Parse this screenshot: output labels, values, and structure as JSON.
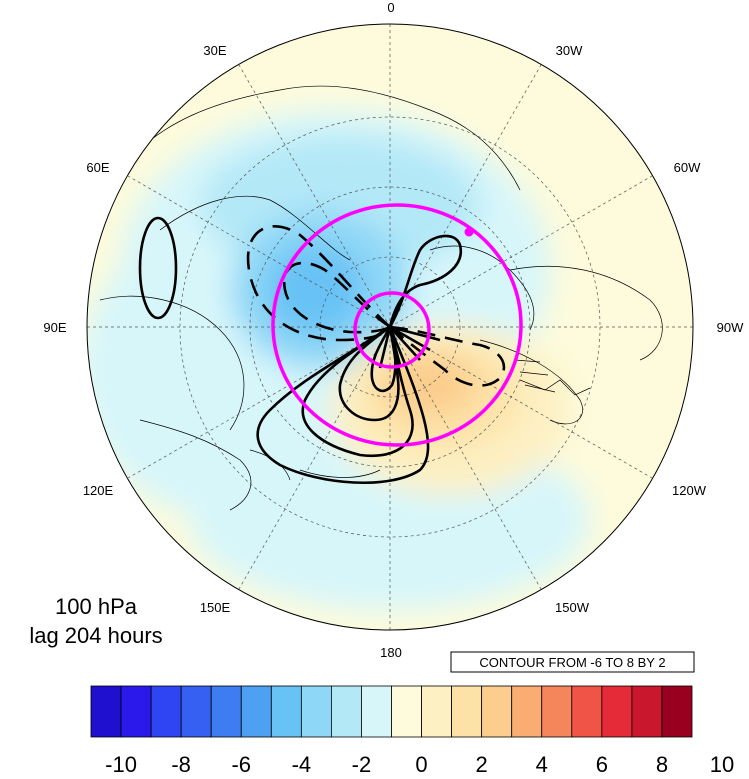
{
  "title": {
    "line1": "100 hPa",
    "line2": "lag 204 hours"
  },
  "contour_info": "CONTOUR FROM -6 TO 8 BY 2",
  "longitude_labels": [
    "0",
    "30W",
    "60W",
    "90W",
    "120W",
    "150W",
    "180",
    "150E",
    "120E",
    "90E",
    "60E",
    "30E"
  ],
  "colorbar": {
    "ticks": [
      "-10",
      "-8",
      "-6",
      "-4",
      "-2",
      "0",
      "2",
      "4",
      "6",
      "8",
      "10"
    ],
    "colors": [
      "#1f0fcf",
      "#2a19ea",
      "#2f45f4",
      "#3560f2",
      "#3d7df1",
      "#4ea0f2",
      "#67c2f5",
      "#8fd7f7",
      "#b3e8f7",
      "#d7f6fa",
      "#fdfbdc",
      "#fdf0c3",
      "#fde2a8",
      "#fccd8d",
      "#f9ad72",
      "#f5855a",
      "#ef5447",
      "#e52b38",
      "#c9182e",
      "#990020"
    ]
  },
  "contour_range": {
    "min": -6,
    "max": 8,
    "interval": 2
  },
  "colors": {
    "highlight_circle": "#ff00ff",
    "contour_line": "#000000"
  }
}
